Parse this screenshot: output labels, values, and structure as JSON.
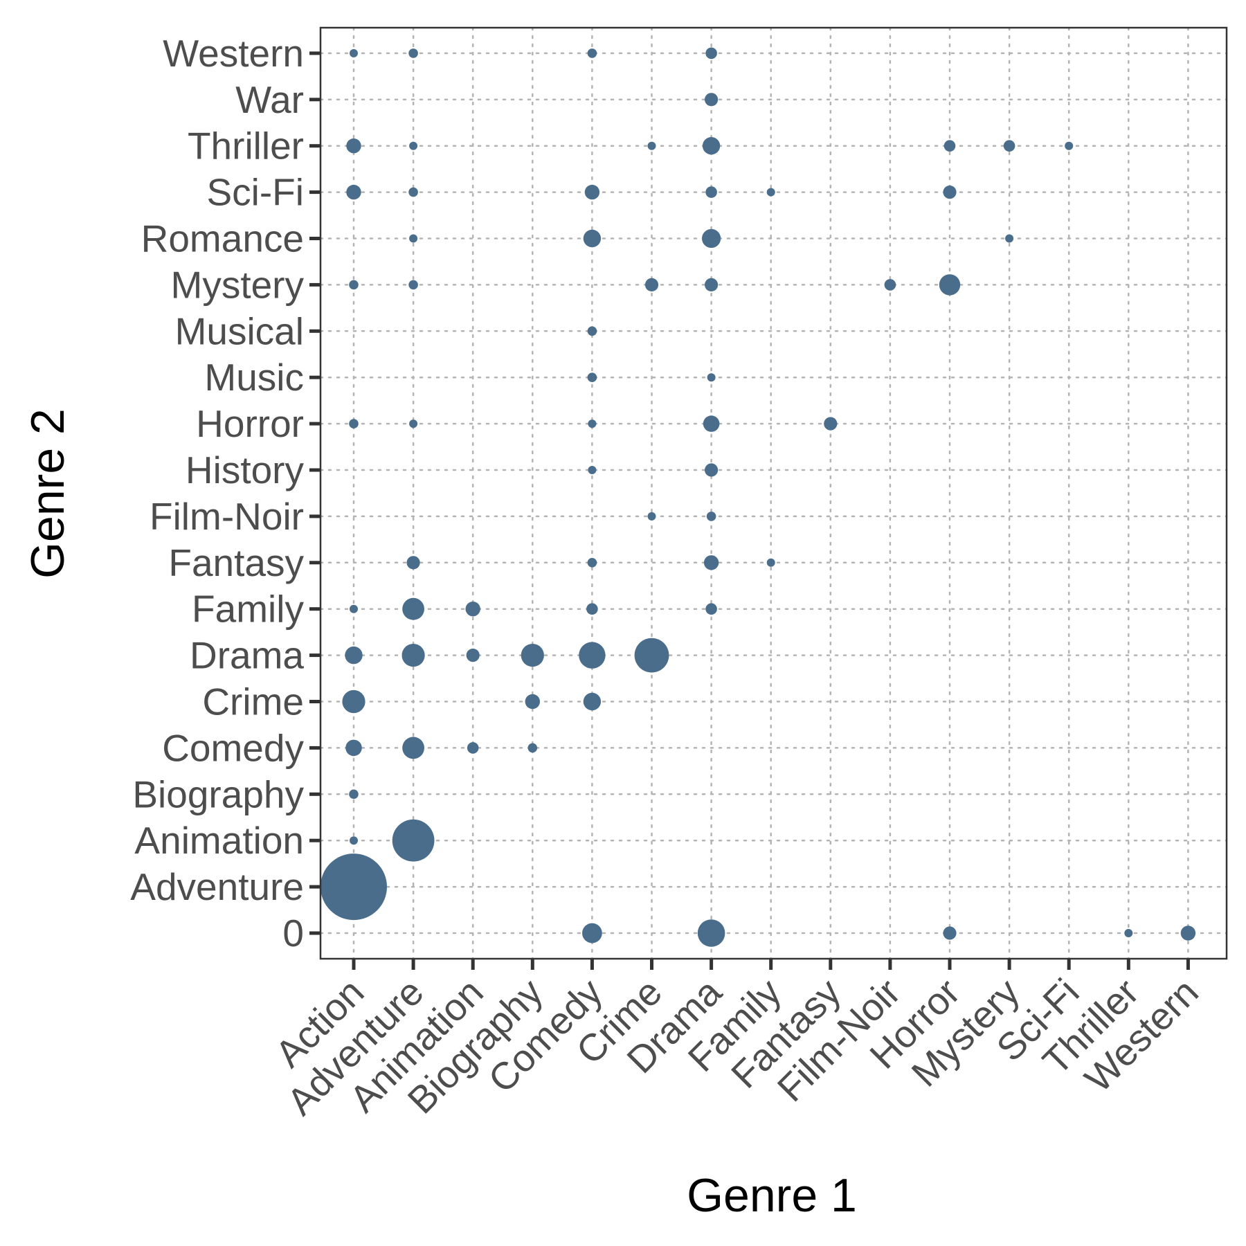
{
  "chart_data": {
    "type": "scatter",
    "subtype": "bubble",
    "xlabel": "Genre 1",
    "ylabel": "Genre 2",
    "x_categories": [
      "Action",
      "Adventure",
      "Animation",
      "Biography",
      "Comedy",
      "Crime",
      "Drama",
      "Family",
      "Fantasy",
      "Film-Noir",
      "Horror",
      "Mystery",
      "Sci-Fi",
      "Thriller",
      "Western"
    ],
    "y_categories": [
      "0",
      "Adventure",
      "Animation",
      "Biography",
      "Comedy",
      "Crime",
      "Drama",
      "Family",
      "Fantasy",
      "Film-Noir",
      "History",
      "Horror",
      "Music",
      "Musical",
      "Mystery",
      "Romance",
      "Sci-Fi",
      "Thriller",
      "War",
      "Western"
    ],
    "grid": true,
    "grid_style": "dotted",
    "legend": "none",
    "colors": {
      "point": "#4a6d8c",
      "grid": "#b3b3b3",
      "axis": "#333333",
      "tick_text": "#4d4d4d"
    },
    "size_note": "bubble size proportional to count (relative estimate)",
    "points": [
      {
        "x": "Action",
        "y": "Adventure",
        "value": 100
      },
      {
        "x": "Action",
        "y": "Animation",
        "value": 1
      },
      {
        "x": "Action",
        "y": "Biography",
        "value": 2
      },
      {
        "x": "Action",
        "y": "Comedy",
        "value": 6
      },
      {
        "x": "Action",
        "y": "Crime",
        "value": 12
      },
      {
        "x": "Action",
        "y": "Drama",
        "value": 7
      },
      {
        "x": "Action",
        "y": "Family",
        "value": 1
      },
      {
        "x": "Action",
        "y": "Horror",
        "value": 2
      },
      {
        "x": "Action",
        "y": "Mystery",
        "value": 2
      },
      {
        "x": "Action",
        "y": "Sci-Fi",
        "value": 5
      },
      {
        "x": "Action",
        "y": "Thriller",
        "value": 5
      },
      {
        "x": "Action",
        "y": "Western",
        "value": 1
      },
      {
        "x": "Adventure",
        "y": "Animation",
        "value": 40
      },
      {
        "x": "Adventure",
        "y": "Comedy",
        "value": 11
      },
      {
        "x": "Adventure",
        "y": "Drama",
        "value": 12
      },
      {
        "x": "Adventure",
        "y": "Family",
        "value": 11
      },
      {
        "x": "Adventure",
        "y": "Fantasy",
        "value": 4
      },
      {
        "x": "Adventure",
        "y": "Horror",
        "value": 1
      },
      {
        "x": "Adventure",
        "y": "Mystery",
        "value": 2
      },
      {
        "x": "Adventure",
        "y": "Romance",
        "value": 1
      },
      {
        "x": "Adventure",
        "y": "Sci-Fi",
        "value": 2
      },
      {
        "x": "Adventure",
        "y": "Thriller",
        "value": 1
      },
      {
        "x": "Adventure",
        "y": "Western",
        "value": 2
      },
      {
        "x": "Animation",
        "y": "Comedy",
        "value": 3
      },
      {
        "x": "Animation",
        "y": "Drama",
        "value": 4
      },
      {
        "x": "Animation",
        "y": "Family",
        "value": 5
      },
      {
        "x": "Biography",
        "y": "Comedy",
        "value": 2
      },
      {
        "x": "Biography",
        "y": "Crime",
        "value": 5
      },
      {
        "x": "Biography",
        "y": "Drama",
        "value": 12
      },
      {
        "x": "Comedy",
        "y": "0",
        "value": 9
      },
      {
        "x": "Comedy",
        "y": "Crime",
        "value": 7
      },
      {
        "x": "Comedy",
        "y": "Drama",
        "value": 16
      },
      {
        "x": "Comedy",
        "y": "Family",
        "value": 3
      },
      {
        "x": "Comedy",
        "y": "Fantasy",
        "value": 2
      },
      {
        "x": "Comedy",
        "y": "History",
        "value": 1
      },
      {
        "x": "Comedy",
        "y": "Horror",
        "value": 1
      },
      {
        "x": "Comedy",
        "y": "Music",
        "value": 2
      },
      {
        "x": "Comedy",
        "y": "Musical",
        "value": 2
      },
      {
        "x": "Comedy",
        "y": "Romance",
        "value": 7
      },
      {
        "x": "Comedy",
        "y": "Sci-Fi",
        "value": 5
      },
      {
        "x": "Comedy",
        "y": "Western",
        "value": 2
      },
      {
        "x": "Crime",
        "y": "Drama",
        "value": 27
      },
      {
        "x": "Crime",
        "y": "Film-Noir",
        "value": 1
      },
      {
        "x": "Crime",
        "y": "Mystery",
        "value": 4
      },
      {
        "x": "Crime",
        "y": "Thriller",
        "value": 1
      },
      {
        "x": "Drama",
        "y": "0",
        "value": 17
      },
      {
        "x": "Drama",
        "y": "Family",
        "value": 3
      },
      {
        "x": "Drama",
        "y": "Fantasy",
        "value": 5
      },
      {
        "x": "Drama",
        "y": "Film-Noir",
        "value": 2
      },
      {
        "x": "Drama",
        "y": "History",
        "value": 4
      },
      {
        "x": "Drama",
        "y": "Horror",
        "value": 6
      },
      {
        "x": "Drama",
        "y": "Music",
        "value": 1
      },
      {
        "x": "Drama",
        "y": "Mystery",
        "value": 4
      },
      {
        "x": "Drama",
        "y": "Romance",
        "value": 8
      },
      {
        "x": "Drama",
        "y": "Sci-Fi",
        "value": 3
      },
      {
        "x": "Drama",
        "y": "Thriller",
        "value": 7
      },
      {
        "x": "Drama",
        "y": "War",
        "value": 4
      },
      {
        "x": "Drama",
        "y": "Western",
        "value": 3
      },
      {
        "x": "Family",
        "y": "Fantasy",
        "value": 1
      },
      {
        "x": "Family",
        "y": "Sci-Fi",
        "value": 1
      },
      {
        "x": "Fantasy",
        "y": "Horror",
        "value": 4
      },
      {
        "x": "Film-Noir",
        "y": "Mystery",
        "value": 3
      },
      {
        "x": "Horror",
        "y": "0",
        "value": 4
      },
      {
        "x": "Horror",
        "y": "Mystery",
        "value": 10
      },
      {
        "x": "Horror",
        "y": "Sci-Fi",
        "value": 4
      },
      {
        "x": "Horror",
        "y": "Thriller",
        "value": 3
      },
      {
        "x": "Mystery",
        "y": "Romance",
        "value": 1
      },
      {
        "x": "Mystery",
        "y": "Thriller",
        "value": 3
      },
      {
        "x": "Sci-Fi",
        "y": "Thriller",
        "value": 1
      },
      {
        "x": "Thriller",
        "y": "0",
        "value": 1
      },
      {
        "x": "Western",
        "y": "0",
        "value": 5
      }
    ]
  }
}
